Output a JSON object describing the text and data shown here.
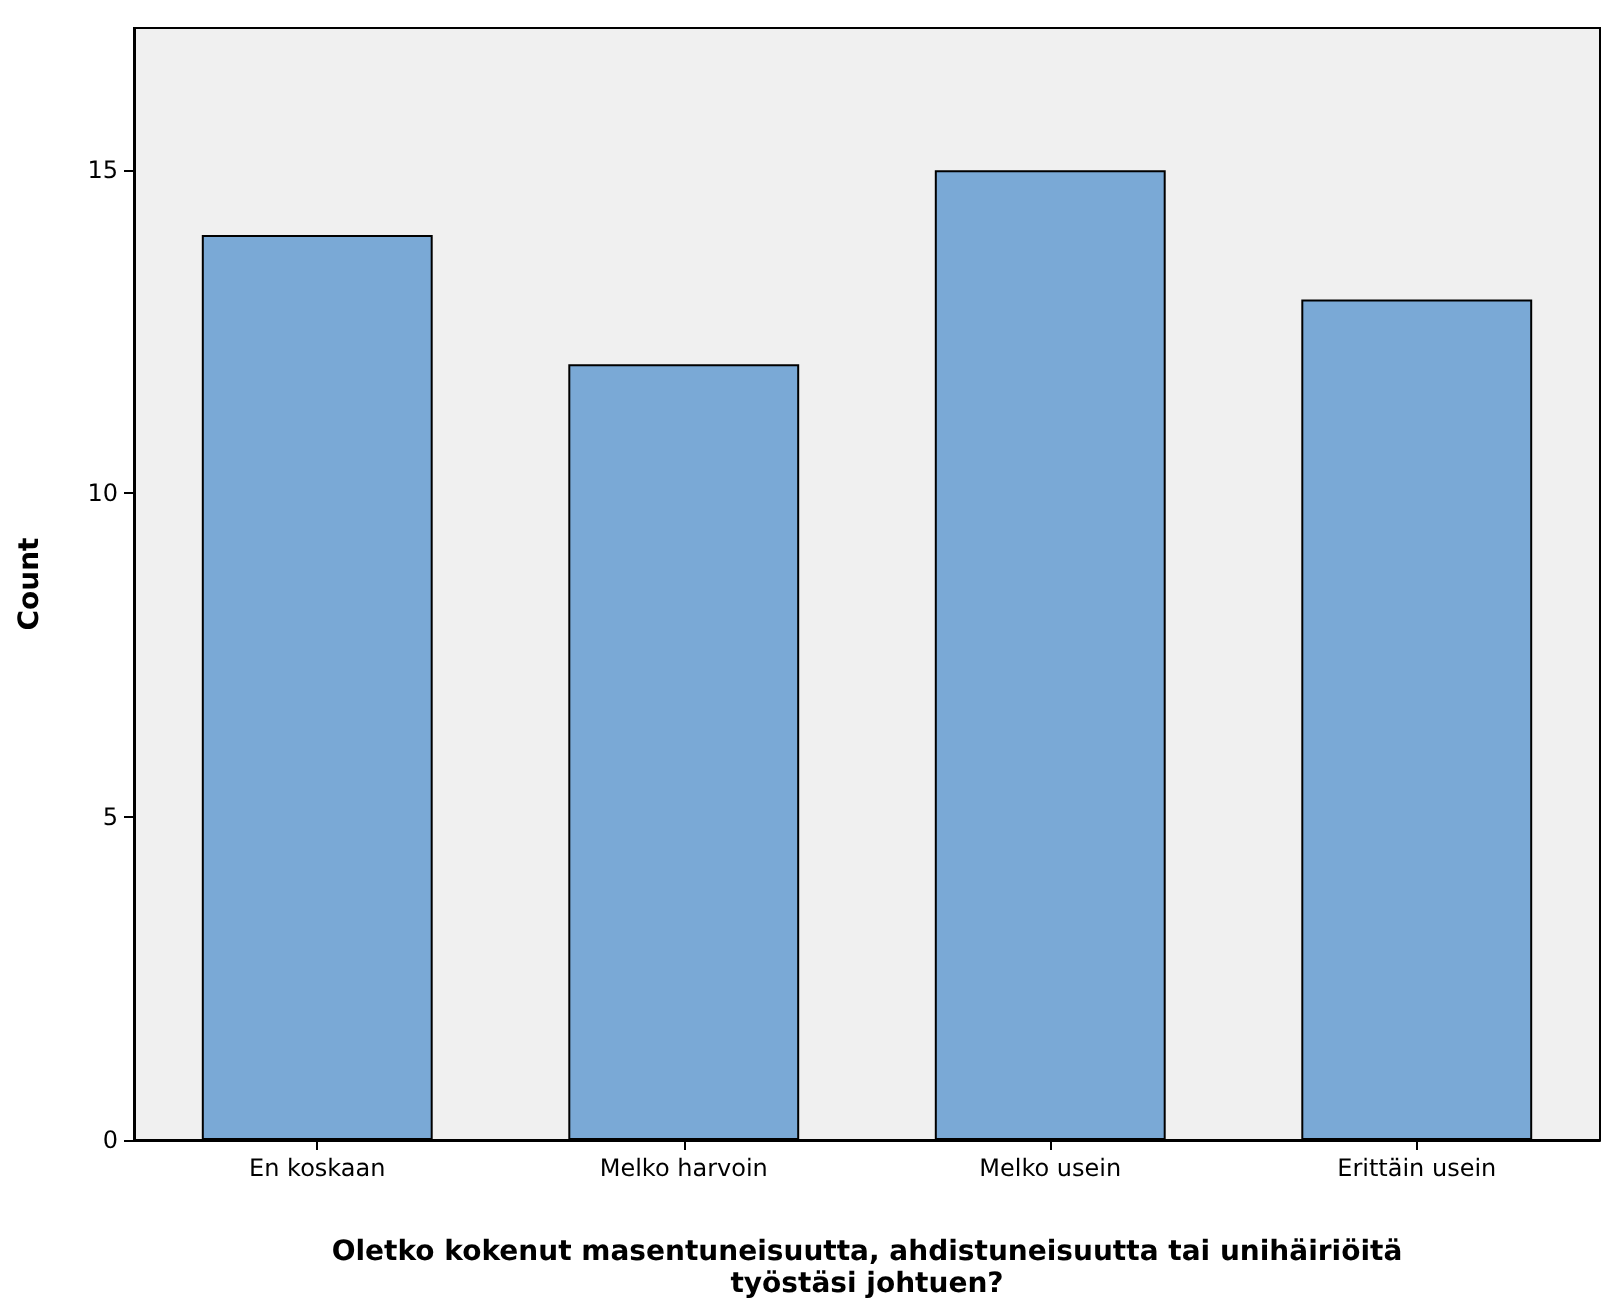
{
  "chart_data": {
    "type": "bar",
    "xlabel": "Oletko kokenut masentuneisuutta, ahdistuneisuutta tai unihäiriöitä työstäsi johtuen?",
    "ylabel": "Count",
    "categories": [
      "En koskaan",
      "Melko harvoin",
      "Melko usein",
      "Erittäin usein"
    ],
    "values": [
      14,
      12,
      15,
      13
    ],
    "color": "#7aa9d6",
    "ylim": [
      0,
      17.2
    ],
    "yticks": [
      0,
      5,
      10,
      15
    ],
    "grid": false
  }
}
